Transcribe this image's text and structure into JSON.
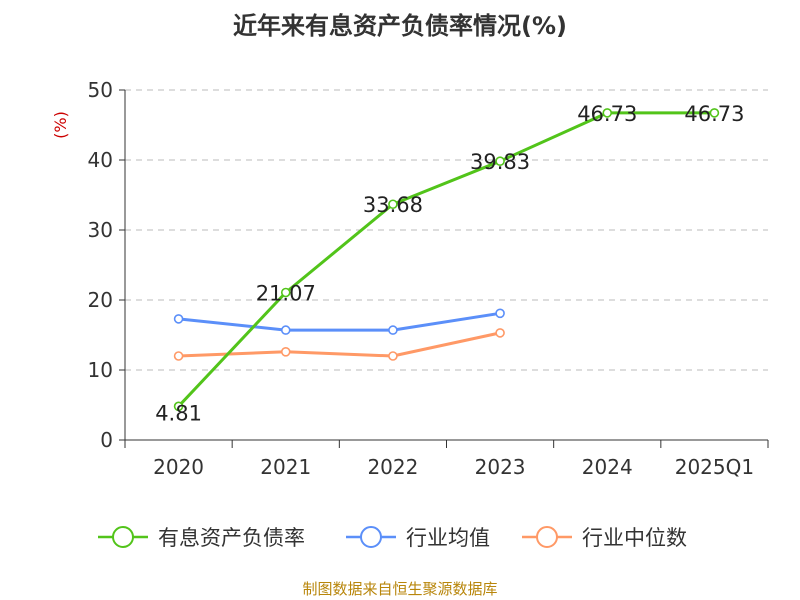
{
  "chart_data": {
    "type": "line",
    "title": "近年来有息资产负债率情况(%)",
    "ylabel": "(%)",
    "xlabel": "",
    "categories": [
      "2020",
      "2021",
      "2022",
      "2023",
      "2024",
      "2025Q1"
    ],
    "ylim": [
      0,
      50
    ],
    "yticks": [
      0,
      10,
      20,
      30,
      40,
      50
    ],
    "grid": true,
    "legend_position": "bottom",
    "series": [
      {
        "name": "有息资产负债率",
        "color": "#52c41a",
        "values": [
          4.81,
          21.07,
          33.68,
          39.83,
          46.73,
          46.73
        ],
        "labels": [
          "4.81",
          "21.07",
          "33.68",
          "39.83",
          "46.73",
          "46.73"
        ]
      },
      {
        "name": "行业均值",
        "color": "#5b8ff9",
        "values": [
          17.3,
          15.7,
          15.7,
          18.1,
          null,
          null
        ]
      },
      {
        "name": "行业中位数",
        "color": "#ff9966",
        "values": [
          12.0,
          12.6,
          12.0,
          15.3,
          null,
          null
        ]
      }
    ]
  },
  "source_text": "制图数据来自恒生聚源数据库"
}
